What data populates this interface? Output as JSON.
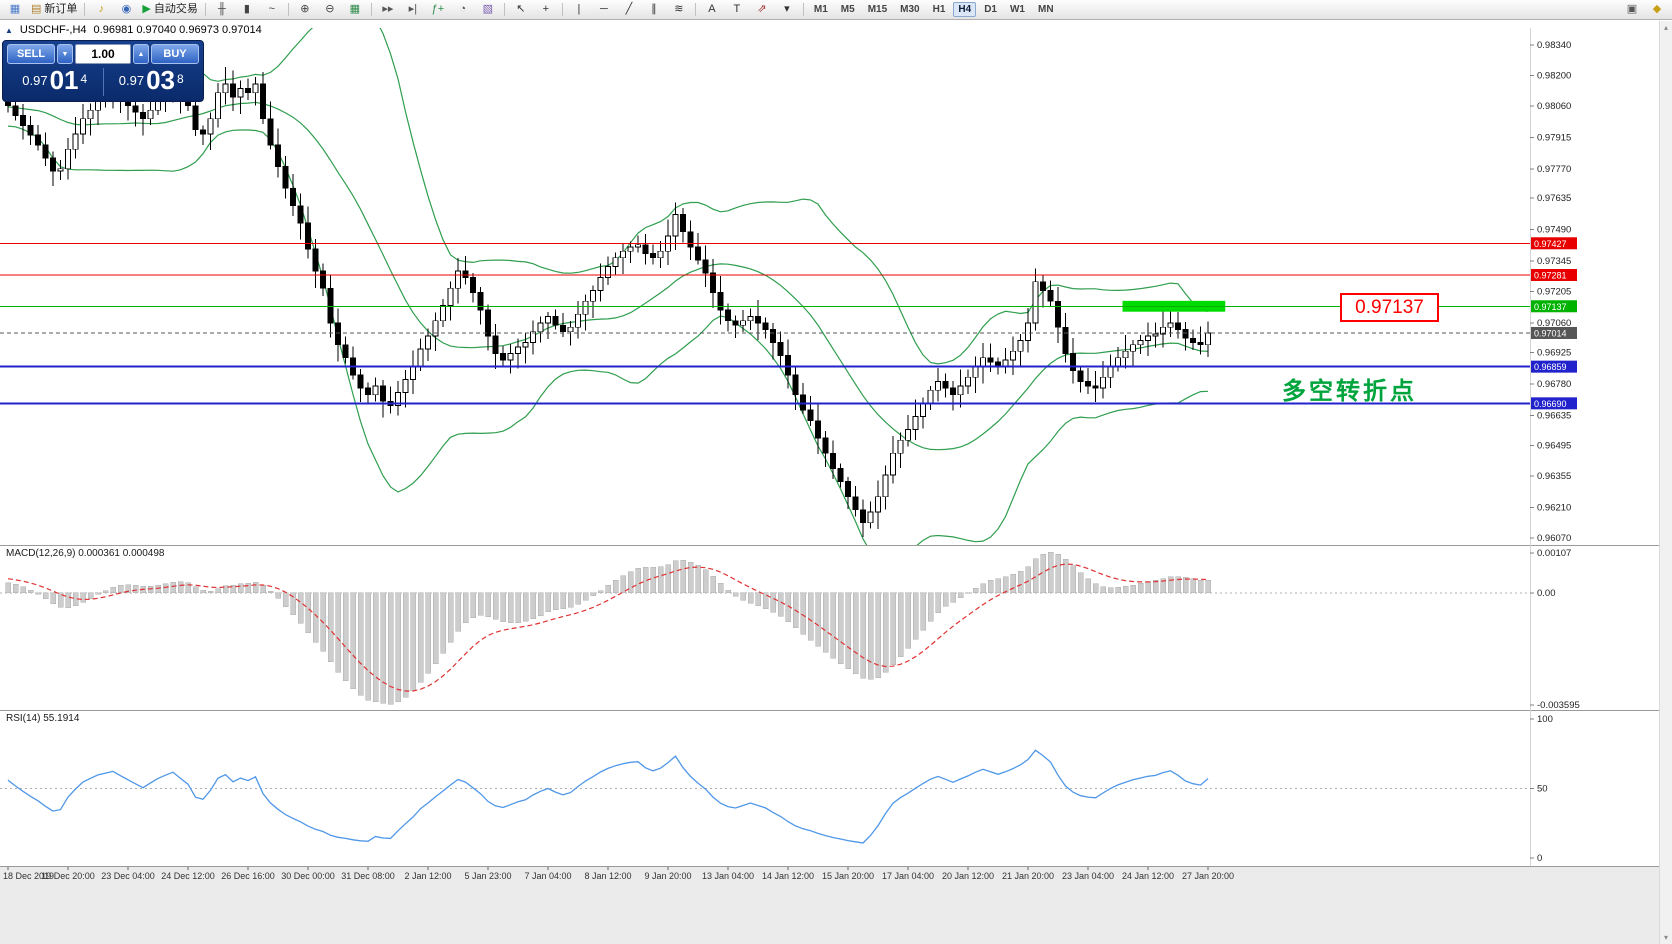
{
  "palette": {
    "bollinger": "#2f9e4e",
    "level_red": "#e80000",
    "level_green": "#00b300",
    "level_blue": "#2222cc",
    "current_price": "#565656",
    "highlight_green": "#00dc00",
    "macd_hist": "#cdcdcd",
    "macd_signal": "#e03232",
    "rsi_line": "#4f97e8",
    "panel_blue": "#0a2a6a",
    "up_candle": "#ffffff",
    "down_candle": "#000000"
  },
  "toolbar": {
    "items": [
      {
        "name": "new-chart-icon",
        "glyph": "▦",
        "color": "#4a78c8"
      },
      {
        "name": "new-order-button",
        "glyph": "▤",
        "color": "#b08030",
        "label": "新订单"
      },
      {
        "type": "sep"
      },
      {
        "name": "sound-icon",
        "glyph": "♪",
        "color": "#c8a018"
      },
      {
        "name": "news-icon",
        "glyph": "◉",
        "color": "#3a68b8"
      },
      {
        "name": "autotrading-button",
        "glyph": "▶",
        "color": "#18a038",
        "label": "自动交易"
      },
      {
        "type": "sep"
      },
      {
        "name": "bar-chart-icon",
        "glyph": "╫",
        "color": "#444444"
      },
      {
        "name": "candle-chart-icon",
        "glyph": "▮",
        "color": "#444444"
      },
      {
        "name": "line-chart-icon",
        "glyph": "~",
        "color": "#444444"
      },
      {
        "type": "sep"
      },
      {
        "name": "zoom-in-icon",
        "glyph": "⊕",
        "color": "#444444"
      },
      {
        "name": "zoom-out-icon",
        "glyph": "⊖",
        "color": "#444444"
      },
      {
        "name": "tile-windows-icon",
        "glyph": "▦",
        "color": "#2e8b4a"
      },
      {
        "type": "sep"
      },
      {
        "name": "auto-scroll-icon",
        "glyph": "▸▸",
        "color": "#555555"
      },
      {
        "name": "chart-shift-icon",
        "glyph": "▸|",
        "color": "#555555"
      },
      {
        "name": "indicators-icon",
        "glyph": "ƒ+",
        "color": "#2e8b4a"
      },
      {
        "name": "periods-icon",
        "glyph": "◔",
        "color": "#555555"
      },
      {
        "name": "templates-icon",
        "glyph": "▧",
        "color": "#7a5ab0"
      },
      {
        "type": "sep"
      },
      {
        "name": "cursor-icon",
        "glyph": "↖",
        "color": "#333333"
      },
      {
        "name": "crosshair-icon",
        "glyph": "+",
        "color": "#333333"
      },
      {
        "type": "sep"
      },
      {
        "name": "vertical-line-icon",
        "glyph": "|",
        "color": "#333333"
      },
      {
        "name": "horizontal-line-icon",
        "glyph": "─",
        "color": "#333333"
      },
      {
        "name": "trendline-icon",
        "glyph": "╱",
        "color": "#333333"
      },
      {
        "name": "channel-icon",
        "glyph": "∥",
        "color": "#333333"
      },
      {
        "name": "fibonacci-icon",
        "glyph": "≋",
        "color": "#333333"
      },
      {
        "type": "sep"
      },
      {
        "name": "text-icon",
        "glyph": "A",
        "color": "#333333"
      },
      {
        "name": "text-label-icon",
        "glyph": "T",
        "color": "#333333"
      },
      {
        "name": "arrows-icon",
        "glyph": "⇗",
        "color": "#a03030"
      },
      {
        "name": "arrows-dropdown",
        "glyph": "▾",
        "color": "#333333"
      },
      {
        "type": "sep"
      }
    ],
    "timeframes": [
      "M1",
      "M5",
      "M15",
      "M30",
      "H1",
      "H4",
      "D1",
      "W1",
      "MN"
    ],
    "active_timeframe": "H4",
    "right_icons": [
      {
        "name": "docs-icon",
        "glyph": "▣",
        "color": "#555555"
      },
      {
        "name": "metaquotes-icon",
        "glyph": "◆",
        "color": "#c8a018"
      }
    ]
  },
  "chart": {
    "collapse_glyph": "▲",
    "symbol": "USDCHF-,H4",
    "quotes": "0.96981 0.97040 0.96973 0.97014"
  },
  "trade_panel": {
    "sell_label": "SELL",
    "buy_label": "BUY",
    "volume": "1.00",
    "spin_down_glyph": "▼",
    "spin_up_glyph": "▲",
    "bid": {
      "base": "0.97",
      "pips": "01",
      "frac": "4"
    },
    "ask": {
      "base": "0.97",
      "pips": "03",
      "frac": "8"
    }
  },
  "price_axis": {
    "labels": [
      "0.98340",
      "0.98200",
      "0.98060",
      "0.97915",
      "0.97770",
      "0.97635",
      "0.97490",
      "0.97345",
      "0.97205",
      "0.97060",
      "0.96925",
      "0.96780",
      "0.96635",
      "0.96495",
      "0.96355",
      "0.96210",
      "0.96070"
    ]
  },
  "levels": [
    {
      "label": "0.97427",
      "price": 0.97427,
      "color": "#e80000",
      "width": 1,
      "user_line": true
    },
    {
      "label": "0.97281",
      "price": 0.97281,
      "color": "#e80000",
      "width": 1,
      "user_line": true
    },
    {
      "label": "0.97137",
      "price": 0.97137,
      "color": "#00b300",
      "width": 1,
      "user_line": true
    },
    {
      "label": "0.97014",
      "price": 0.97014,
      "color": "#565656",
      "width": 1,
      "dash": "4 3",
      "user_line": false
    },
    {
      "label": "0.96859",
      "price": 0.96859,
      "color": "#2222cc",
      "width": 2,
      "user_line": true
    },
    {
      "label": "0.96690",
      "price": 0.9669,
      "color": "#2222cc",
      "width": 2,
      "user_line": true
    }
  ],
  "annotations": {
    "callout": "0.97137",
    "note": "多空转折点",
    "highlight": {
      "from_index": 149,
      "to_index": 162.7,
      "price_top": 0.97162,
      "price_bottom": 0.97112,
      "color": "#00dc00"
    }
  },
  "macd": {
    "label": "MACD(12,26,9) 0.000361 0.000498",
    "axis": [
      "0.00107",
      "0.00",
      "-0.003595"
    ],
    "params": [
      12,
      26,
      9
    ]
  },
  "rsi": {
    "label": "RSI(14) 55.1914",
    "axis": [
      "100",
      "50",
      "0"
    ],
    "period": 14
  },
  "time_axis": [
    "18 Dec 2019",
    "19 Dec 20:00",
    "23 Dec 04:00",
    "24 Dec 12:00",
    "26 Dec 16:00",
    "30 Dec 00:00",
    "31 Dec 08:00",
    "2 Jan 12:00",
    "5 Jan 23:00",
    "7 Jan 04:00",
    "8 Jan 12:00",
    "9 Jan 20:00",
    "13 Jan 04:00",
    "14 Jan 12:00",
    "15 Jan 20:00",
    "17 Jan 04:00",
    "20 Jan 12:00",
    "21 Jan 20:00",
    "23 Jan 04:00",
    "24 Jan 12:00",
    "27 Jan 20:00"
  ],
  "scrollbar": {
    "up": "▴",
    "down": "▾"
  },
  "chart_data": {
    "type": "candlestick+indicators",
    "symbol": "USDCHF",
    "timeframe": "H4",
    "ylim": [
      0.96038,
      0.98418
    ],
    "bollinger": {
      "period": 20,
      "deviation": 2
    },
    "pre_closes": [
      0.9762,
      0.9768,
      0.9774,
      0.978,
      0.9776,
      0.9782,
      0.9788,
      0.9794,
      0.979,
      0.9796,
      0.98,
      0.9804,
      0.9798,
      0.9794,
      0.9798,
      0.9803,
      0.9807,
      0.9802,
      0.9797,
      0.9801,
      0.9806,
      0.981,
      0.9806,
      0.9801,
      0.9797,
      0.9801,
      0.9806,
      0.981,
      0.9814,
      0.981,
      0.9805,
      0.98,
      0.9804,
      0.9808,
      0.9812,
      0.9808,
      0.9803,
      0.9799,
      0.9803,
      0.9808
    ],
    "closes": [
      0.9806,
      0.98015,
      0.9797,
      0.97925,
      0.9788,
      0.9782,
      0.9776,
      0.9777,
      0.9786,
      0.9793,
      0.98,
      0.9804,
      0.9808,
      0.981,
      0.9812,
      0.9809,
      0.9806,
      0.9803,
      0.98,
      0.9804,
      0.9808,
      0.9811,
      0.9814,
      0.981,
      0.9806,
      0.9795,
      0.9793,
      0.98,
      0.9812,
      0.9816,
      0.981,
      0.9814,
      0.9812,
      0.9816,
      0.98,
      0.9788,
      0.9778,
      0.9768,
      0.976,
      0.9752,
      0.974,
      0.973,
      0.9722,
      0.9706,
      0.9696,
      0.969,
      0.9682,
      0.9676,
      0.9673,
      0.9677,
      0.967,
      0.9668,
      0.9674,
      0.968,
      0.9686,
      0.9694,
      0.97,
      0.9707,
      0.9714,
      0.9722,
      0.973,
      0.9727,
      0.972,
      0.9712,
      0.97,
      0.9692,
      0.9689,
      0.9692,
      0.9695,
      0.9697,
      0.9702,
      0.9706,
      0.9709,
      0.9705,
      0.9702,
      0.9704,
      0.971,
      0.9716,
      0.9721,
      0.9727,
      0.9732,
      0.9736,
      0.9739,
      0.9741,
      0.9742,
      0.9738,
      0.9736,
      0.9739,
      0.9746,
      0.9756,
      0.9748,
      0.9741,
      0.9735,
      0.9729,
      0.972,
      0.9712,
      0.9707,
      0.9705,
      0.9707,
      0.9709,
      0.9706,
      0.9703,
      0.9697,
      0.9691,
      0.9682,
      0.9673,
      0.9666,
      0.9661,
      0.9653,
      0.9646,
      0.9639,
      0.9633,
      0.9626,
      0.962,
      0.9614,
      0.9619,
      0.9626,
      0.9636,
      0.9646,
      0.9652,
      0.9657,
      0.9663,
      0.9669,
      0.9675,
      0.9679,
      0.9676,
      0.9673,
      0.9677,
      0.9681,
      0.9686,
      0.969,
      0.9688,
      0.9686,
      0.9689,
      0.9693,
      0.9698,
      0.9706,
      0.9725,
      0.9721,
      0.9716,
      0.9704,
      0.9692,
      0.9684,
      0.9679,
      0.9677,
      0.9676,
      0.9681,
      0.9686,
      0.969,
      0.9693,
      0.9696,
      0.9698,
      0.97,
      0.9701,
      0.9704,
      0.9706,
      0.9703,
      0.9699,
      0.9697,
      0.9696,
      0.97014
    ],
    "wick_overrides": {
      "6": {
        "low": 0.9769
      },
      "60": {
        "high": 0.9736
      },
      "89": {
        "high": 0.97615
      },
      "114": {
        "low": 0.96075
      },
      "137": {
        "high": 0.9731
      }
    }
  }
}
